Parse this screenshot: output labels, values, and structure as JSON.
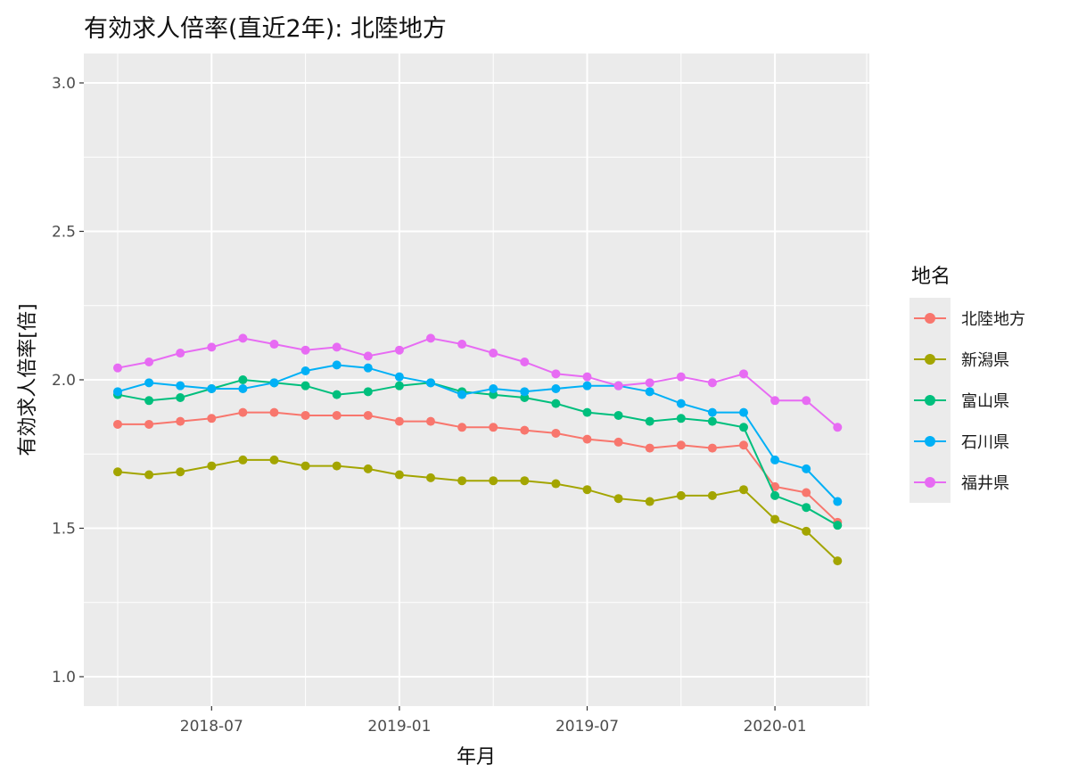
{
  "title": "有効求人倍率(直近2年): 北陸地方",
  "chart_data": {
    "type": "line",
    "title": "有効求人倍率(直近2年): 北陸地方",
    "xlabel": "年月",
    "ylabel": "有効求人倍率[倍]",
    "x": [
      "2018-04",
      "2018-05",
      "2018-06",
      "2018-07",
      "2018-08",
      "2018-09",
      "2018-10",
      "2018-11",
      "2018-12",
      "2019-01",
      "2019-02",
      "2019-03",
      "2019-04",
      "2019-05",
      "2019-06",
      "2019-07",
      "2019-08",
      "2019-09",
      "2019-10",
      "2019-11",
      "2019-12",
      "2020-01",
      "2020-02",
      "2020-03"
    ],
    "x_ticks": [
      "2018-07",
      "2019-01",
      "2019-07",
      "2020-01"
    ],
    "y_ticks": [
      "1.0",
      "1.5",
      "2.0",
      "2.5",
      "3.0"
    ],
    "ylim": [
      1.0,
      3.0
    ],
    "grid": true,
    "legend_position": "right",
    "legend_title": "地名",
    "series": [
      {
        "name": "北陸地方",
        "color": "#F8766D",
        "values": [
          1.85,
          1.85,
          1.86,
          1.87,
          1.89,
          1.89,
          1.88,
          1.88,
          1.88,
          1.86,
          1.86,
          1.84,
          1.84,
          1.83,
          1.82,
          1.8,
          1.79,
          1.77,
          1.78,
          1.77,
          1.78,
          1.64,
          1.62,
          1.52
        ]
      },
      {
        "name": "新潟県",
        "color": "#A3A500",
        "values": [
          1.69,
          1.68,
          1.69,
          1.71,
          1.73,
          1.73,
          1.71,
          1.71,
          1.7,
          1.68,
          1.67,
          1.66,
          1.66,
          1.66,
          1.65,
          1.63,
          1.6,
          1.59,
          1.61,
          1.61,
          1.63,
          1.53,
          1.49,
          1.39
        ]
      },
      {
        "name": "富山県",
        "color": "#00BF7D",
        "values": [
          1.95,
          1.93,
          1.94,
          1.97,
          2.0,
          1.99,
          1.98,
          1.95,
          1.96,
          1.98,
          1.99,
          1.96,
          1.95,
          1.94,
          1.92,
          1.89,
          1.88,
          1.86,
          1.87,
          1.86,
          1.84,
          1.61,
          1.57,
          1.51
        ]
      },
      {
        "name": "石川県",
        "color": "#00B0F6",
        "values": [
          1.96,
          1.99,
          1.98,
          1.97,
          1.97,
          1.99,
          2.03,
          2.05,
          2.04,
          2.01,
          1.99,
          1.95,
          1.97,
          1.96,
          1.97,
          1.98,
          1.98,
          1.96,
          1.92,
          1.89,
          1.89,
          1.73,
          1.7,
          1.59
        ]
      },
      {
        "name": "福井県",
        "color": "#E76BF3",
        "values": [
          2.04,
          2.06,
          2.09,
          2.11,
          2.14,
          2.12,
          2.1,
          2.11,
          2.08,
          2.1,
          2.14,
          2.12,
          2.09,
          2.06,
          2.02,
          2.01,
          1.98,
          1.99,
          2.01,
          1.99,
          2.02,
          1.93,
          1.93,
          1.84
        ]
      }
    ]
  }
}
